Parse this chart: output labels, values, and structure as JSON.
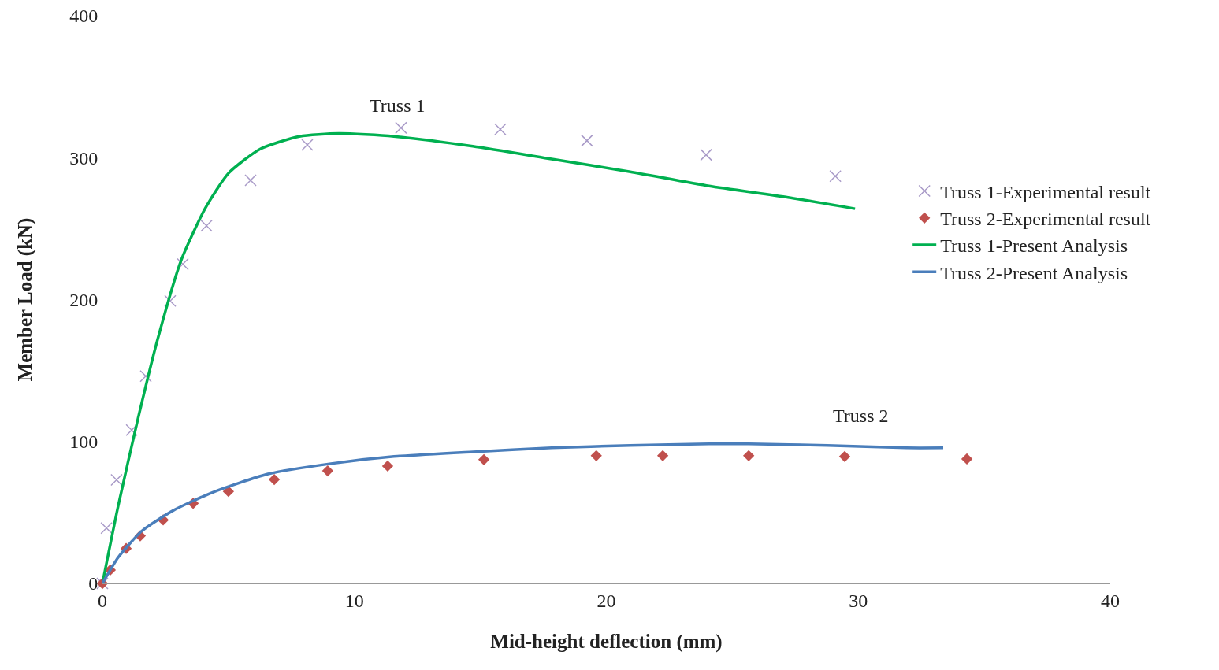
{
  "chart_data": {
    "type": "scatter",
    "xlabel": "Mid-height deflection (mm)",
    "ylabel": "Member Load (kN)",
    "xlim": [
      0,
      40
    ],
    "ylim": [
      0,
      400
    ],
    "xticks": [
      0,
      10,
      20,
      30,
      40
    ],
    "yticks": [
      0,
      100,
      200,
      300,
      400
    ],
    "grid": false,
    "legend": "right",
    "annotations": [
      "Truss 1",
      "Truss 2"
    ],
    "series": [
      {
        "name": "Truss 1-Experimental result",
        "marker": "cross",
        "color": "#a99bc8",
        "x": [
          0,
          0.16,
          0.56,
          1.16,
          1.72,
          2.69,
          3.19,
          4.13,
          5.88,
          8.13,
          11.85,
          15.79,
          19.23,
          23.96,
          29.09
        ],
        "values": [
          0,
          39,
          73,
          108,
          146,
          199,
          225,
          252,
          284,
          309,
          321,
          320,
          312,
          302,
          287
        ]
      },
      {
        "name": "Truss 2-Experimental result",
        "marker": "diamond",
        "color": "#c0504d",
        "x": [
          0,
          0.31,
          0.94,
          1.5,
          2.41,
          3.6,
          5.0,
          6.82,
          8.94,
          11.32,
          15.14,
          19.6,
          22.24,
          25.65,
          29.46,
          34.31
        ],
        "values": [
          0,
          9.5,
          24.6,
          33.5,
          44.7,
          56.4,
          64.8,
          73.2,
          79.3,
          82.7,
          87.2,
          90,
          90,
          90,
          89.4,
          87.7
        ]
      },
      {
        "name": "Truss 1-Present Analysis",
        "type": "line",
        "marker": "none",
        "line_style": "solid",
        "color": "#00b050",
        "x": [
          0,
          0.63,
          1.41,
          2.19,
          3.13,
          4.07,
          5.0,
          6.25,
          7.82,
          9.38,
          11.57,
          14.7,
          17.83,
          20.95,
          24.08,
          27.21,
          29.87
        ],
        "values": [
          0,
          55,
          116,
          172,
          228,
          264,
          289,
          306,
          315,
          317,
          315,
          308,
          299,
          290,
          280,
          272,
          264
        ]
      },
      {
        "name": "Truss 2-Present Analysis",
        "type": "line",
        "marker": "none",
        "line_style": "solid",
        "color": "#4a7ebb",
        "x": [
          0,
          0.63,
          1.56,
          2.81,
          4.38,
          6.57,
          9.07,
          11.57,
          14.7,
          17.83,
          20.95,
          24.08,
          25.65,
          28.77,
          31.9,
          33.37
        ],
        "values": [
          0,
          18.4,
          36.9,
          51.4,
          64.2,
          77.1,
          84.4,
          89.4,
          92.7,
          95.5,
          97.2,
          98.3,
          98.3,
          97.2,
          95.5,
          95.5
        ]
      }
    ]
  }
}
